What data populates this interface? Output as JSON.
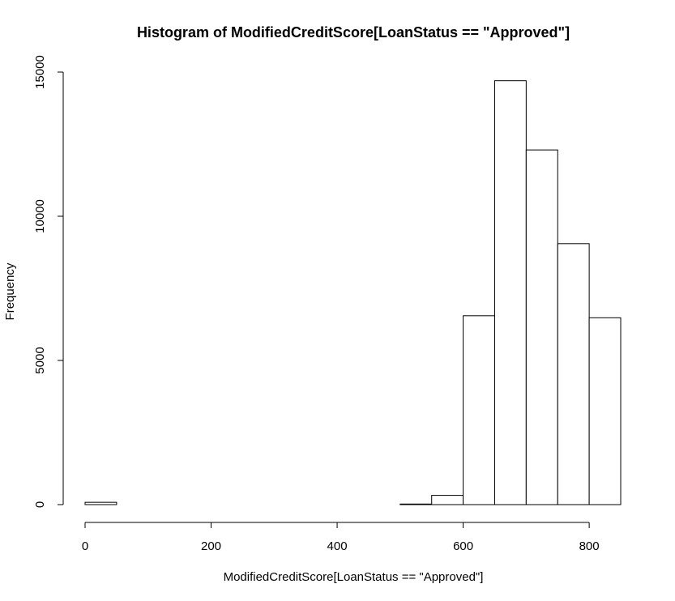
{
  "chart_data": {
    "type": "bar",
    "title": "Histogram of ModifiedCreditScore[LoanStatus == \"Approved\"]",
    "xlabel": "ModifiedCreditScore[LoanStatus == \"Approved\"]",
    "ylabel": "Frequency",
    "bins": [
      {
        "x0": 0,
        "x1": 50,
        "count": 80
      },
      {
        "x0": 50,
        "x1": 100,
        "count": 0
      },
      {
        "x0": 100,
        "x1": 150,
        "count": 0
      },
      {
        "x0": 150,
        "x1": 200,
        "count": 0
      },
      {
        "x0": 200,
        "x1": 250,
        "count": 0
      },
      {
        "x0": 250,
        "x1": 300,
        "count": 0
      },
      {
        "x0": 300,
        "x1": 350,
        "count": 0
      },
      {
        "x0": 350,
        "x1": 400,
        "count": 0
      },
      {
        "x0": 400,
        "x1": 450,
        "count": 0
      },
      {
        "x0": 450,
        "x1": 500,
        "count": 0
      },
      {
        "x0": 500,
        "x1": 550,
        "count": 20
      },
      {
        "x0": 550,
        "x1": 600,
        "count": 320
      },
      {
        "x0": 600,
        "x1": 650,
        "count": 6550
      },
      {
        "x0": 650,
        "x1": 700,
        "count": 14700
      },
      {
        "x0": 700,
        "x1": 750,
        "count": 12300
      },
      {
        "x0": 750,
        "x1": 800,
        "count": 9050
      },
      {
        "x0": 800,
        "x1": 850,
        "count": 6480
      }
    ],
    "xlim": [
      0,
      850
    ],
    "ylim": [
      0,
      15000
    ],
    "x_ticks": [
      0,
      200,
      400,
      600,
      800
    ],
    "y_ticks": [
      0,
      5000,
      10000,
      15000
    ],
    "grid": false,
    "legend": "none"
  }
}
